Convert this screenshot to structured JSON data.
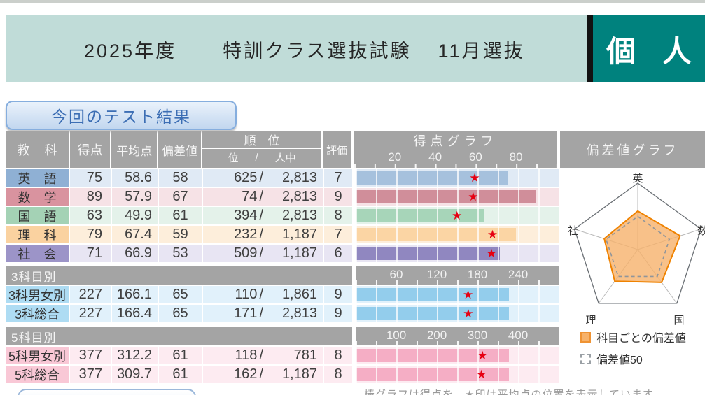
{
  "page": {
    "title_year": "2025年度",
    "title_exam": "特訓クラス選抜試験",
    "title_session": "11月選抜",
    "badge": "個 人"
  },
  "button": {
    "label": "今回のテスト結果"
  },
  "columns": {
    "subject": "教 科",
    "score": "得点",
    "average": "平均点",
    "deviation": "偏差値",
    "rank": "順 位",
    "rank_unit_left": "位",
    "rank_slash": "/",
    "rank_unit_right": "人中",
    "evaluation": "評価",
    "score_graph": "得点グラフ",
    "deviation_graph": "偏差値グラフ"
  },
  "score_graph": {
    "axis_ticks": [
      20,
      40,
      60,
      80
    ],
    "axis_max": 100
  },
  "subjects": [
    {
      "name": "英 語",
      "score": 75,
      "average": "58.6",
      "deviation": 58,
      "rank": "625",
      "rank_total": "2,813",
      "evaluation": 7,
      "colors": {
        "label": "#8fb0d4",
        "tint": "#e0eaf5",
        "bar": "#a6c1dd"
      }
    },
    {
      "name": "数 学",
      "score": 89,
      "average": "57.9",
      "deviation": 67,
      "rank": "74",
      "rank_total": "2,813",
      "evaluation": 9,
      "colors": {
        "label": "#d9939f",
        "tint": "#f6e2e6",
        "bar": "#d08e9a"
      }
    },
    {
      "name": "国 語",
      "score": 63,
      "average": "49.9",
      "deviation": 61,
      "rank": "394",
      "rank_total": "2,813",
      "evaluation": 8,
      "colors": {
        "label": "#a4d2b5",
        "tint": "#e4f2ea",
        "bar": "#a7d5b9"
      }
    },
    {
      "name": "理 科",
      "score": 79,
      "average": "67.4",
      "deviation": 59,
      "rank": "232",
      "rank_total": "1,187",
      "evaluation": 7,
      "colors": {
        "label": "#fad2a0",
        "tint": "#fdeedb",
        "bar": "#fbd5a4"
      }
    },
    {
      "name": "社 会",
      "score": 71,
      "average": "66.9",
      "deviation": 53,
      "rank": "509",
      "rank_total": "1,187",
      "evaluation": 6,
      "colors": {
        "label": "#9c94c8",
        "tint": "#e8e5f3",
        "bar": "#9087c0"
      }
    }
  ],
  "sections": [
    {
      "title": "3科目別",
      "axis_ticks": [
        60,
        120,
        180,
        240
      ],
      "axis_max": 300,
      "colors": {
        "label": "#aedcf3",
        "tint": "#e1f1fb",
        "bar": "#93cdec"
      },
      "rows": [
        {
          "name": "3科男女別",
          "score": 227,
          "average": "166.1",
          "deviation": 65,
          "rank": "110",
          "rank_total": "1,861",
          "evaluation": 9
        },
        {
          "name": "3科総合",
          "score": 227,
          "average": "166.4",
          "deviation": 65,
          "rank": "171",
          "rank_total": "2,813",
          "evaluation": 9
        }
      ]
    },
    {
      "title": "5科目別",
      "axis_ticks": [
        100,
        200,
        300,
        400
      ],
      "axis_max": 500,
      "colors": {
        "label": "#f9c8d6",
        "tint": "#fdebf1",
        "bar": "#f5aec5"
      },
      "rows": [
        {
          "name": "5科男女別",
          "score": 377,
          "average": "312.2",
          "deviation": 61,
          "rank": "118",
          "rank_total": "781",
          "evaluation": 8
        },
        {
          "name": "5科総合",
          "score": 377,
          "average": "309.7",
          "deviation": 61,
          "rank": "162",
          "rank_total": "1,187",
          "evaluation": 8
        }
      ]
    }
  ],
  "radar": {
    "axes": [
      "英",
      "数",
      "国",
      "理",
      "社"
    ],
    "values": [
      58,
      67,
      61,
      59,
      53
    ],
    "reference_value": 50,
    "scale_max": 100,
    "legend": [
      {
        "swatch": "subject",
        "label": "科目ごとの偏差値"
      },
      {
        "swatch": "reference",
        "label": "偏差値50"
      }
    ]
  },
  "footnote": "棒グラフは得点を、★印は平均点の位置を表示しています",
  "star_glyph": "★",
  "colors": {
    "band": "#c0dcd8",
    "badge": "#00827e",
    "badge_bar": "#121212",
    "header_gray": "#a4a4a4",
    "star": "#e60012",
    "radar_fill": "#f6b26b",
    "radar_stroke": "#ef8200",
    "radar_reference": "#90959a",
    "radar_outline": "#6a6f74"
  },
  "chart_data": [
    {
      "type": "bar",
      "title": "得点グラフ",
      "categories": [
        "英語",
        "数学",
        "国語",
        "理科",
        "社会"
      ],
      "series": [
        {
          "name": "得点",
          "values": [
            75,
            89,
            63,
            79,
            71
          ]
        },
        {
          "name": "平均点(★)",
          "values": [
            58.6,
            57.9,
            49.9,
            67.4,
            66.9
          ]
        }
      ],
      "xlim": [
        0,
        100
      ],
      "ticks": [
        20,
        40,
        60,
        80
      ]
    },
    {
      "type": "bar",
      "title": "3科目別",
      "categories": [
        "3科男女別",
        "3科総合"
      ],
      "series": [
        {
          "name": "得点",
          "values": [
            227,
            227
          ]
        },
        {
          "name": "平均点(★)",
          "values": [
            166.1,
            166.4
          ]
        }
      ],
      "xlim": [
        0,
        300
      ],
      "ticks": [
        60,
        120,
        180,
        240
      ]
    },
    {
      "type": "bar",
      "title": "5科目別",
      "categories": [
        "5科男女別",
        "5科総合"
      ],
      "series": [
        {
          "name": "得点",
          "values": [
            377,
            377
          ]
        },
        {
          "name": "平均点(★)",
          "values": [
            312.2,
            309.7
          ]
        }
      ],
      "xlim": [
        0,
        500
      ],
      "ticks": [
        100,
        200,
        300,
        400
      ]
    },
    {
      "type": "radar",
      "title": "偏差値グラフ",
      "categories": [
        "英",
        "数",
        "国",
        "理",
        "社"
      ],
      "series": [
        {
          "name": "科目ごとの偏差値",
          "values": [
            58,
            67,
            61,
            59,
            53
          ]
        },
        {
          "name": "偏差値50",
          "values": [
            50,
            50,
            50,
            50,
            50
          ]
        }
      ]
    }
  ]
}
